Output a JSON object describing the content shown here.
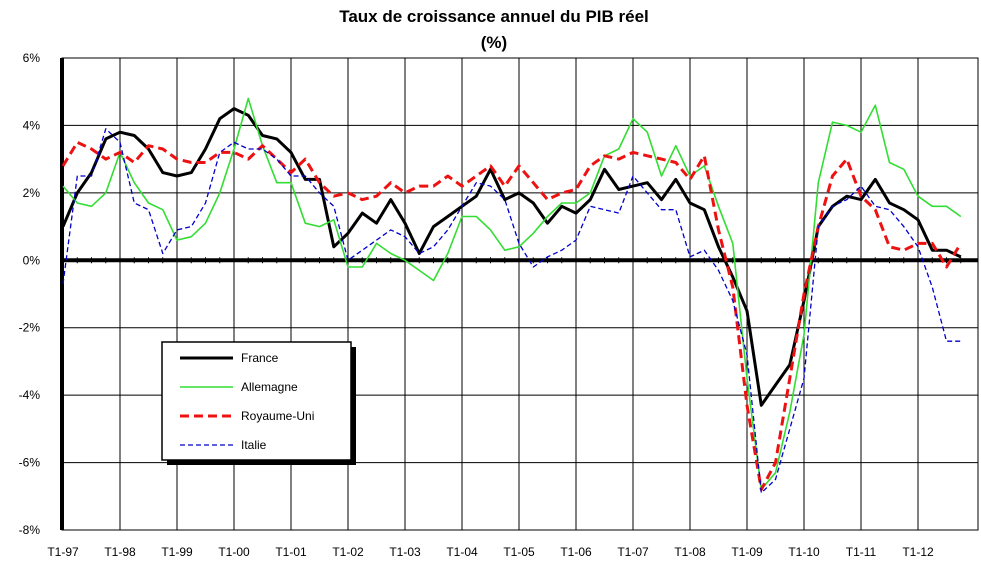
{
  "chart_data": {
    "type": "line",
    "title": "Taux de croissance annuel du PIB réel",
    "subtitle": "(%)",
    "xlabel": "",
    "ylabel": "",
    "ylim": [
      -8,
      6
    ],
    "yticks": [
      6,
      4,
      2,
      0,
      -2,
      -4,
      -6,
      -8
    ],
    "ytick_labels": [
      "6%",
      "4%",
      "2%",
      "0%",
      "-2%",
      "-4%",
      "-6%",
      "-8%"
    ],
    "xtick_labels": [
      "T1-97",
      "T1-98",
      "T1-99",
      "T1-00",
      "T1-01",
      "T1-02",
      "T1-03",
      "T1-04",
      "T1-05",
      "T1-06",
      "T1-07",
      "T1-08",
      "T1-09",
      "T1-10",
      "T1-11",
      "T1-12"
    ],
    "grid": true,
    "legend_position": "lower-left inside plot",
    "series": [
      {
        "name": "France",
        "color": "#000000",
        "style": "solid-thick",
        "values": [
          1.0,
          2.0,
          2.6,
          3.6,
          3.8,
          3.7,
          3.3,
          2.6,
          2.5,
          2.6,
          3.3,
          4.2,
          4.5,
          4.3,
          3.7,
          3.6,
          3.2,
          2.4,
          2.4,
          0.4,
          0.8,
          1.4,
          1.1,
          1.8,
          1.1,
          0.2,
          1.0,
          1.3,
          1.6,
          1.9,
          2.7,
          1.8,
          2.0,
          1.7,
          1.1,
          1.6,
          1.4,
          1.8,
          2.7,
          2.1,
          2.2,
          2.3,
          1.8,
          2.4,
          1.7,
          1.5,
          0.4,
          -0.5,
          -1.5,
          -4.3,
          -3.7,
          -3.1,
          -1.2,
          1.0,
          1.6,
          1.9,
          1.8,
          2.4,
          1.7,
          1.5,
          1.2,
          0.3,
          0.3,
          0.1
        ]
      },
      {
        "name": "Allemagne",
        "color": "#33dd33",
        "style": "solid",
        "values": [
          2.2,
          1.7,
          1.6,
          2.0,
          3.2,
          2.3,
          1.7,
          1.5,
          0.6,
          0.7,
          1.1,
          2.0,
          3.3,
          4.8,
          3.4,
          2.3,
          2.3,
          1.1,
          1.0,
          1.2,
          -0.2,
          -0.2,
          0.5,
          0.2,
          0.0,
          -0.3,
          -0.6,
          0.2,
          1.3,
          1.3,
          0.9,
          0.3,
          0.4,
          0.8,
          1.3,
          1.7,
          1.7,
          2.0,
          3.1,
          3.3,
          4.2,
          3.8,
          2.5,
          3.4,
          2.5,
          2.8,
          1.6,
          0.5,
          -3.5,
          -6.8,
          -6.3,
          -4.5,
          -2.2,
          2.3,
          4.1,
          4.0,
          3.8,
          4.6,
          2.9,
          2.7,
          1.9,
          1.6,
          1.6,
          1.3
        ]
      },
      {
        "name": "Royaume-Uni",
        "color": "#ee1111",
        "style": "dashed-thick",
        "values": [
          2.8,
          3.5,
          3.3,
          3.0,
          3.2,
          2.9,
          3.4,
          3.3,
          3.0,
          2.9,
          2.9,
          3.2,
          3.2,
          3.0,
          3.4,
          3.0,
          2.6,
          3.0,
          2.3,
          1.9,
          2.0,
          1.8,
          1.9,
          2.3,
          2.0,
          2.2,
          2.2,
          2.5,
          2.2,
          2.5,
          2.8,
          2.2,
          2.8,
          2.3,
          1.8,
          2.0,
          2.1,
          2.8,
          3.1,
          3.0,
          3.2,
          3.1,
          3.0,
          2.9,
          2.4,
          3.1,
          0.9,
          -0.8,
          -4.3,
          -6.8,
          -6.0,
          -3.5,
          -1.0,
          1.0,
          2.5,
          3.0,
          1.9,
          1.5,
          0.4,
          0.3,
          0.5,
          0.5,
          -0.2,
          0.5
        ]
      },
      {
        "name": "Italie",
        "color": "#0000cc",
        "style": "dashed-thin",
        "values": [
          -0.7,
          2.5,
          2.5,
          3.9,
          3.5,
          1.7,
          1.5,
          0.2,
          0.9,
          1.0,
          1.7,
          3.2,
          3.5,
          3.3,
          3.3,
          3.0,
          2.5,
          2.5,
          2.0,
          1.6,
          0.0,
          0.3,
          0.6,
          0.9,
          0.7,
          0.2,
          0.4,
          0.9,
          1.6,
          2.3,
          2.2,
          1.8,
          0.5,
          -0.2,
          0.1,
          0.3,
          0.6,
          1.6,
          1.5,
          1.4,
          2.5,
          2.0,
          1.5,
          1.5,
          0.1,
          0.3,
          -0.3,
          -1.2,
          -2.8,
          -6.9,
          -6.5,
          -5.0,
          -3.5,
          1.0,
          1.6,
          1.8,
          2.2,
          1.6,
          1.5,
          1.0,
          0.4,
          -0.8,
          -2.4,
          -2.4
        ]
      }
    ]
  }
}
